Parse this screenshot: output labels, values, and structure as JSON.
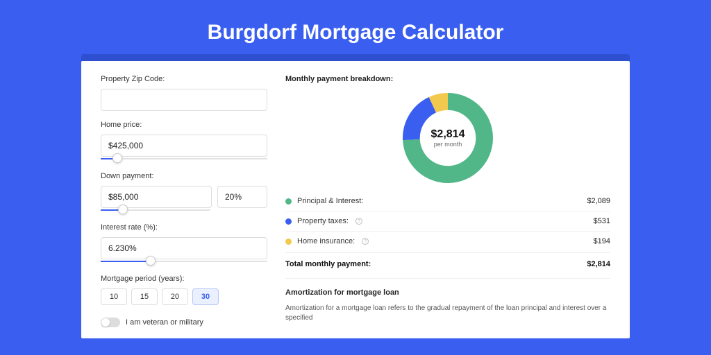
{
  "page": {
    "title": "Burgdorf Mortgage Calculator",
    "bg_color": "#3a5ff0",
    "panel_shadow_color": "#2d4fd0",
    "panel_bg": "#ffffff"
  },
  "form": {
    "zip": {
      "label": "Property Zip Code:",
      "value": ""
    },
    "home_price": {
      "label": "Home price:",
      "value": "$425,000",
      "slider_pct": 10
    },
    "down_payment": {
      "label": "Down payment:",
      "value": "$85,000",
      "pct_value": "20%",
      "slider_pct": 20
    },
    "interest_rate": {
      "label": "Interest rate (%):",
      "value": "6.230%",
      "slider_pct": 30
    },
    "period": {
      "label": "Mortgage period (years):",
      "options": [
        "10",
        "15",
        "20",
        "30"
      ],
      "selected": "30"
    },
    "veteran": {
      "label": "I am veteran or military",
      "on": false
    }
  },
  "breakdown": {
    "title": "Monthly payment breakdown:",
    "center_amount": "$2,814",
    "center_sub": "per month",
    "donut": {
      "type": "donut",
      "size": 130,
      "inner_radius_ratio": 0.62,
      "slices": [
        {
          "label": "Principal & Interest:",
          "value": 2089,
          "display": "$2,089",
          "color": "#52b788",
          "has_info": false
        },
        {
          "label": "Property taxes:",
          "value": 531,
          "display": "$531",
          "color": "#3a5ff0",
          "has_info": true
        },
        {
          "label": "Home insurance:",
          "value": 194,
          "display": "$194",
          "color": "#f2c94c",
          "has_info": true
        }
      ]
    },
    "total": {
      "label": "Total monthly payment:",
      "display": "$2,814"
    }
  },
  "amort": {
    "title": "Amortization for mortgage loan",
    "text": "Amortization for a mortgage loan refers to the gradual repayment of the loan principal and interest over a specified"
  }
}
